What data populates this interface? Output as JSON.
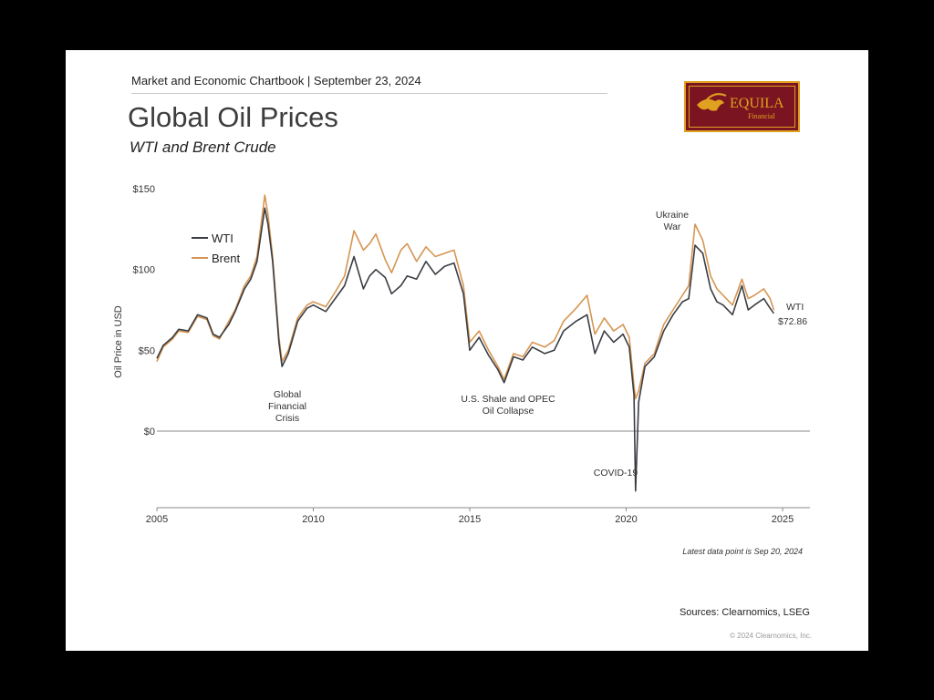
{
  "header": {
    "chartbook": "Market and Economic Chartbook | September 23, 2024",
    "title": "Global Oil Prices",
    "subtitle": "WTI and Brent Crude"
  },
  "logo": {
    "text": "EQUILA",
    "subtext": "Financial",
    "bg": "#7a1420",
    "accent": "#e0a020"
  },
  "chart_data": {
    "type": "line",
    "title": "Global Oil Prices",
    "subtitle": "WTI and Brent Crude",
    "ylabel": "Oil Price in USD",
    "xlabel": "",
    "xlim": [
      2005,
      2025
    ],
    "ylim": [
      -40,
      150
    ],
    "x_ticks": [
      "2005",
      "2010",
      "2015",
      "2020",
      "2025"
    ],
    "y_ticks": [
      {
        "value": 0,
        "label": "$0"
      },
      {
        "value": 50,
        "label": "$50"
      },
      {
        "value": 100,
        "label": "$100"
      },
      {
        "value": 150,
        "label": "$150"
      }
    ],
    "legend": {
      "position": "top-left",
      "entries": [
        "WTI",
        "Brent"
      ]
    },
    "series": [
      {
        "name": "WTI",
        "color": "#3a3d42",
        "x": [
          2005.0,
          2005.2,
          2005.5,
          2005.7,
          2006.0,
          2006.3,
          2006.6,
          2006.8,
          2007.0,
          2007.3,
          2007.5,
          2007.8,
          2008.0,
          2008.2,
          2008.45,
          2008.55,
          2008.7,
          2008.9,
          2009.0,
          2009.2,
          2009.5,
          2009.8,
          2010.0,
          2010.4,
          2010.7,
          2011.0,
          2011.3,
          2011.6,
          2011.8,
          2012.0,
          2012.3,
          2012.5,
          2012.8,
          2013.0,
          2013.3,
          2013.6,
          2013.9,
          2014.2,
          2014.5,
          2014.8,
          2015.0,
          2015.3,
          2015.6,
          2015.9,
          2016.1,
          2016.4,
          2016.7,
          2017.0,
          2017.4,
          2017.7,
          2018.0,
          2018.4,
          2018.75,
          2019.0,
          2019.3,
          2019.6,
          2019.9,
          2020.1,
          2020.25,
          2020.3,
          2020.4,
          2020.6,
          2020.9,
          2021.2,
          2021.5,
          2021.8,
          2022.0,
          2022.2,
          2022.45,
          2022.7,
          2022.9,
          2023.1,
          2023.4,
          2023.7,
          2023.9,
          2024.1,
          2024.4,
          2024.6,
          2024.72
        ],
        "y": [
          45,
          53,
          58,
          63,
          62,
          72,
          70,
          60,
          58,
          66,
          74,
          88,
          94,
          105,
          138,
          128,
          105,
          55,
          40,
          48,
          68,
          76,
          78,
          74,
          82,
          90,
          108,
          88,
          96,
          100,
          95,
          85,
          90,
          96,
          94,
          105,
          97,
          102,
          104,
          85,
          50,
          58,
          47,
          38,
          30,
          46,
          44,
          52,
          48,
          50,
          62,
          68,
          72,
          48,
          62,
          55,
          60,
          52,
          22,
          -37,
          18,
          40,
          46,
          62,
          72,
          80,
          82,
          115,
          110,
          88,
          80,
          78,
          72,
          90,
          75,
          78,
          82,
          76,
          72.86
        ]
      },
      {
        "name": "Brent",
        "color": "#d69552",
        "x": [
          2005.0,
          2005.2,
          2005.5,
          2005.7,
          2006.0,
          2006.3,
          2006.6,
          2006.8,
          2007.0,
          2007.3,
          2007.5,
          2007.8,
          2008.0,
          2008.2,
          2008.45,
          2008.55,
          2008.7,
          2008.9,
          2009.0,
          2009.2,
          2009.5,
          2009.8,
          2010.0,
          2010.4,
          2010.7,
          2011.0,
          2011.3,
          2011.6,
          2011.8,
          2012.0,
          2012.3,
          2012.5,
          2012.8,
          2013.0,
          2013.3,
          2013.6,
          2013.9,
          2014.2,
          2014.5,
          2014.8,
          2015.0,
          2015.3,
          2015.6,
          2015.9,
          2016.1,
          2016.4,
          2016.7,
          2017.0,
          2017.4,
          2017.7,
          2018.0,
          2018.4,
          2018.75,
          2019.0,
          2019.3,
          2019.6,
          2019.9,
          2020.1,
          2020.25,
          2020.3,
          2020.4,
          2020.6,
          2020.9,
          2021.2,
          2021.5,
          2021.8,
          2022.0,
          2022.2,
          2022.45,
          2022.7,
          2022.9,
          2023.1,
          2023.4,
          2023.7,
          2023.9,
          2024.1,
          2024.4,
          2024.6,
          2024.72
        ],
        "y": [
          43,
          52,
          57,
          62,
          61,
          71,
          69,
          59,
          57,
          68,
          75,
          90,
          96,
          108,
          146,
          134,
          108,
          58,
          43,
          50,
          70,
          78,
          80,
          77,
          86,
          96,
          124,
          112,
          116,
          122,
          106,
          98,
          112,
          116,
          105,
          114,
          108,
          110,
          112,
          90,
          55,
          62,
          50,
          40,
          32,
          48,
          46,
          55,
          52,
          56,
          68,
          76,
          84,
          60,
          70,
          62,
          66,
          58,
          28,
          20,
          25,
          42,
          48,
          66,
          75,
          84,
          90,
          128,
          118,
          96,
          88,
          84,
          78,
          94,
          82,
          84,
          88,
          82,
          75
        ]
      }
    ],
    "annotations": [
      {
        "lines": [
          "Global",
          "Financial",
          "Crisis"
        ],
        "x": 2008.9
      },
      {
        "lines": [
          "U.S. Shale and OPEC",
          "Oil Collapse"
        ],
        "x": 2016.1
      },
      {
        "lines": [
          "COVID-19"
        ],
        "x": 2020.3
      },
      {
        "lines": [
          "Ukraine",
          "War"
        ],
        "x": 2022.0
      }
    ],
    "end_label": {
      "series": "WTI",
      "value_label": "$72.86"
    }
  },
  "footnote": "Latest data point is Sep 20, 2024",
  "sources": "Sources: Clearnomics, LSEG",
  "copyright": "© 2024 Clearnomics, Inc."
}
